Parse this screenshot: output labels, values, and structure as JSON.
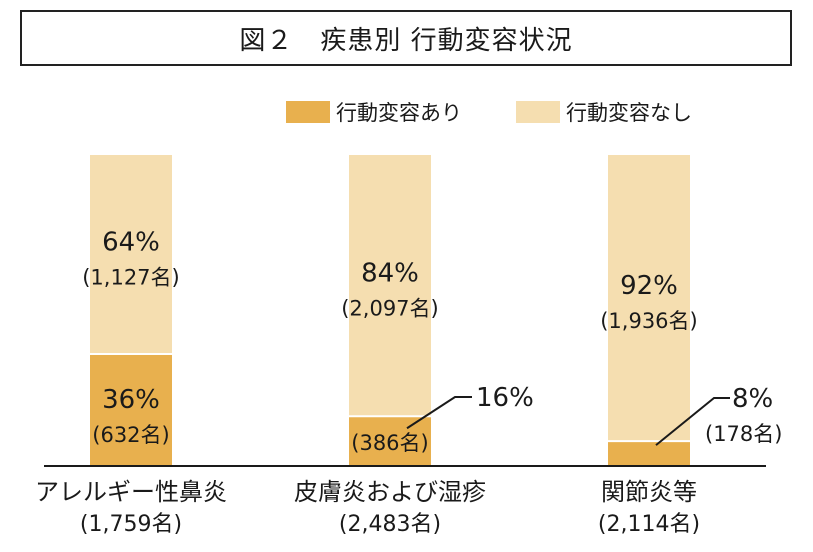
{
  "chart_data": {
    "type": "bar",
    "stacked": true,
    "title": "図２　疾患別 行動変容状況",
    "legend": {
      "placement": "top-right",
      "entries": [
        "行動変容あり",
        "行動変容なし"
      ]
    },
    "categories": [
      "アレルギー性鼻炎",
      "皮膚炎および湿疹",
      "関節炎等"
    ],
    "category_totals": [
      "(1,759名)",
      "(2,483名)",
      "(2,114名)"
    ],
    "series": [
      {
        "name": "行動変容あり",
        "color": "#e8b04e",
        "values": [
          36,
          16,
          8
        ],
        "value_labels": [
          "36%",
          "16%",
          "8%"
        ],
        "count_labels": [
          "(632名)",
          "(386名)",
          "(178名)"
        ]
      },
      {
        "name": "行動変容なし",
        "color": "#f5deb0",
        "values": [
          64,
          84,
          92
        ],
        "value_labels": [
          "64%",
          "84%",
          "92%"
        ],
        "count_labels": [
          "(1,127名)",
          "(2,097名)",
          "(1,936名)"
        ]
      }
    ],
    "ylim": [
      0,
      100
    ],
    "grid": false
  }
}
